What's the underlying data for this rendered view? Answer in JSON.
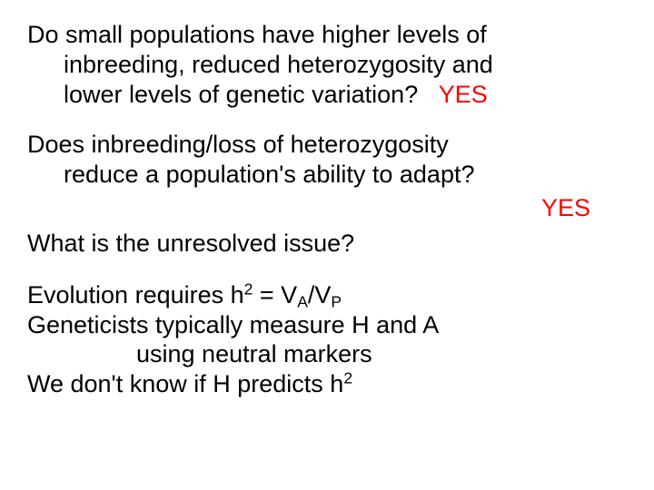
{
  "colors": {
    "text": "#000000",
    "answer": "#ff0000",
    "background": "#ffffff"
  },
  "typography": {
    "font_family": "Comic Sans MS",
    "font_size_pt": 27,
    "line_height": 1.22
  },
  "q1": {
    "line1": "Do small populations have higher levels of",
    "line2": "inbreeding, reduced heterozygosity and",
    "line3_a": "lower levels of genetic variation?",
    "spacer": "   ",
    "answer": "YES"
  },
  "q2": {
    "line1": "Does inbreeding/loss of heterozygosity",
    "line2": "reduce a population's ability to adapt?",
    "answer": "YES"
  },
  "q3": {
    "text": "What is the unresolved issue?"
  },
  "body": {
    "l1_a": "Evolution requires h",
    "l1_sup": "2",
    "l1_b": " = V",
    "l1_sub1": "A",
    "l1_c": "/V",
    "l1_sub2": "P",
    "l2": "Geneticists typically measure H and A",
    "l2b": "using neutral markers",
    "l3_a": "We don't know if H predicts h",
    "l3_sup": "2"
  }
}
